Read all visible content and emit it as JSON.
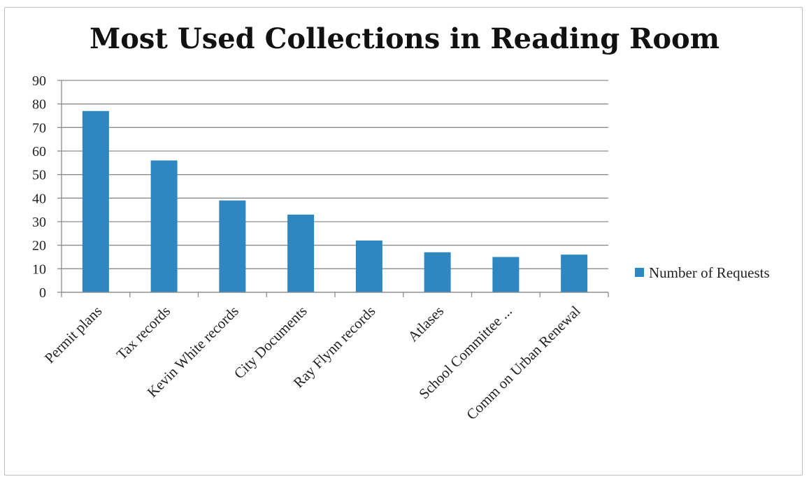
{
  "chart_data": {
    "type": "bar",
    "title": "Most Used Collections in Reading Room",
    "categories": [
      "Permit plans",
      "Tax records",
      "Kevin White records",
      "City Documents",
      "Ray Flynn records",
      "Atlases",
      "School Committee ...",
      "Comm on Urban Renewal"
    ],
    "series": [
      {
        "name": "Number of Requests",
        "values": [
          77,
          56,
          39,
          33,
          22,
          17,
          15,
          16
        ]
      }
    ],
    "ylim": [
      0,
      90
    ],
    "yticks": [
      0,
      10,
      20,
      30,
      40,
      50,
      60,
      70,
      80,
      90
    ],
    "grid": true,
    "legend": "right",
    "colors": {
      "bar": "#2e87c1",
      "grid": "#8c8c8c",
      "axis": "#8c8c8c"
    }
  }
}
